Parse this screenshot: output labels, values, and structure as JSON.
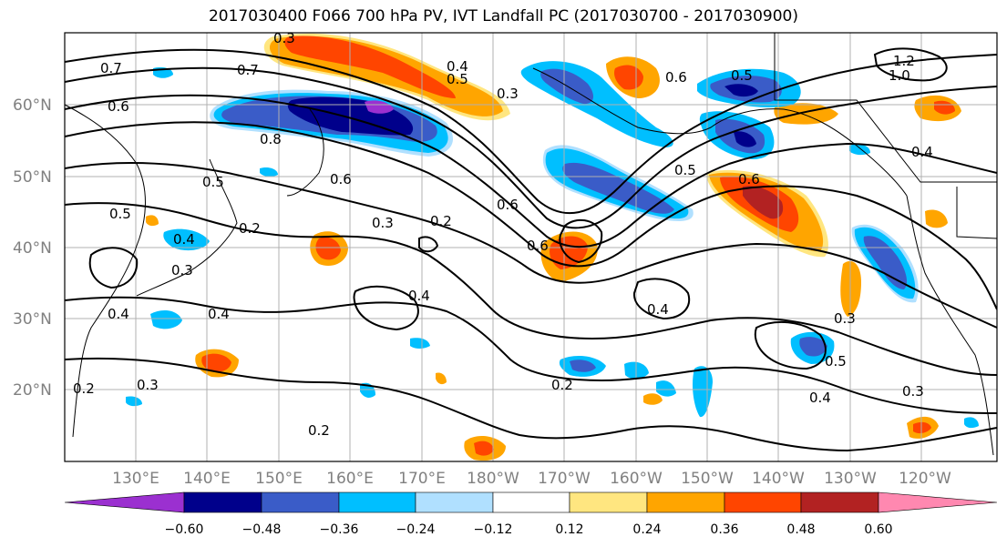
{
  "title": "2017030400 F066 700 hPa PV, IVT Landfall PC (2017030700 - 2017030900)",
  "lat_labels": [
    "60°N",
    "50°N",
    "40°N",
    "30°N",
    "20°N"
  ],
  "lon_labels": [
    "130°E",
    "140°E",
    "150°E",
    "160°E",
    "170°E",
    "180°W",
    "170°W",
    "160°W",
    "150°W",
    "140°W",
    "130°W",
    "120°W"
  ],
  "contour_labels": [
    "0.3",
    "0.7",
    "0.7",
    "0.6",
    "0.8",
    "0.6",
    "0.5",
    "0.5",
    "0.3",
    "0.2",
    "0.4",
    "0.2",
    "0.3",
    "0.4",
    "0.2",
    "0.3",
    "0.4",
    "0.4",
    "0.5",
    "0.6",
    "0.6",
    "0.2",
    "0.4",
    "0.5",
    "0.6",
    "0.5",
    "1.2",
    "1.0",
    "0.4",
    "0.3",
    "0.3",
    "0.3",
    "0.6",
    "0.4",
    "0.4",
    "0.5",
    "0.2"
  ],
  "colorbar": {
    "ticks": [
      "−0.60",
      "−0.48",
      "−0.36",
      "−0.24",
      "−0.12",
      "0.12",
      "0.24",
      "0.36",
      "0.48",
      "0.60"
    ],
    "colors": [
      "#9b30d0",
      "#00008b",
      "#3a5cc8",
      "#00bfff",
      "#b0e0ff",
      "#ffffff",
      "#ffe680",
      "#ffa500",
      "#ff4500",
      "#b22222",
      "#ff88b0"
    ]
  },
  "fill_colors": {
    "orange": "#ffa500",
    "red": "#ff4500",
    "darkred": "#b22222",
    "yellow": "#ffe680",
    "lightblue": "#b0e0ff",
    "cyan": "#00bfff",
    "blue": "#3a5cc8",
    "navy": "#00008b",
    "purple": "#9b30d0"
  }
}
